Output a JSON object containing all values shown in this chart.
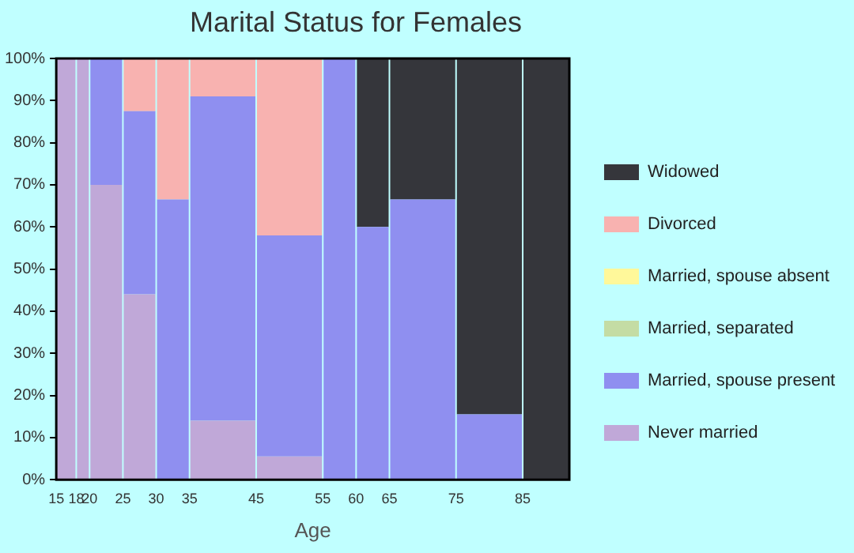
{
  "chart_data": {
    "type": "bar",
    "title": "Marital Status for Females",
    "xlabel": "Age",
    "stacked": true,
    "x": [
      16.5,
      19,
      22.5,
      27.5,
      32.5,
      40,
      50,
      57.5,
      62.5,
      70,
      80,
      88.5
    ],
    "series": [
      {
        "name": "Never married",
        "color": "#c0a8d8",
        "values": [
          100,
          100,
          70,
          44,
          0,
          14,
          5.5,
          0,
          0,
          0,
          0,
          0
        ]
      },
      {
        "name": "Married, spouse present",
        "color": "#8f8ff0",
        "values": [
          0,
          0,
          30,
          43.5,
          66.5,
          77,
          52.5,
          100,
          60,
          66.5,
          15.5,
          0
        ]
      },
      {
        "name": "Married, separated",
        "color": "#c4dca4",
        "values": [
          0,
          0,
          0,
          0,
          0,
          0,
          0,
          0,
          0,
          0,
          0,
          0
        ]
      },
      {
        "name": "Married, spouse absent",
        "color": "#fff89a",
        "values": [
          0,
          0,
          0,
          0,
          0,
          0,
          0,
          0,
          0,
          0,
          0,
          0
        ]
      },
      {
        "name": "Divorced",
        "color": "#f8b2b0",
        "values": [
          0,
          0,
          0,
          12.5,
          33.5,
          9,
          42,
          0,
          0,
          0,
          0,
          0
        ]
      },
      {
        "name": "Widowed",
        "color": "#35363b",
        "values": [
          0,
          0,
          0,
          0,
          0,
          0,
          0,
          0,
          40,
          33.5,
          84.5,
          100
        ]
      }
    ],
    "xlim": [
      15,
      92
    ],
    "xticks": [
      15,
      18,
      20,
      25,
      30,
      35,
      45,
      55,
      60,
      65,
      75,
      85
    ],
    "ylim": [
      0,
      100
    ],
    "yticks": [
      {
        "value": 0,
        "label": "0%"
      },
      {
        "value": 10,
        "label": "10%"
      },
      {
        "value": 20,
        "label": "20%"
      },
      {
        "value": 30,
        "label": "30%"
      },
      {
        "value": 40,
        "label": "40%"
      },
      {
        "value": 50,
        "label": "50%"
      },
      {
        "value": 60,
        "label": "60%"
      },
      {
        "value": 70,
        "label": "70%"
      },
      {
        "value": 80,
        "label": "80%"
      },
      {
        "value": 90,
        "label": "90%"
      },
      {
        "value": 100,
        "label": "100%"
      }
    ],
    "grid": false,
    "legend": "right"
  }
}
